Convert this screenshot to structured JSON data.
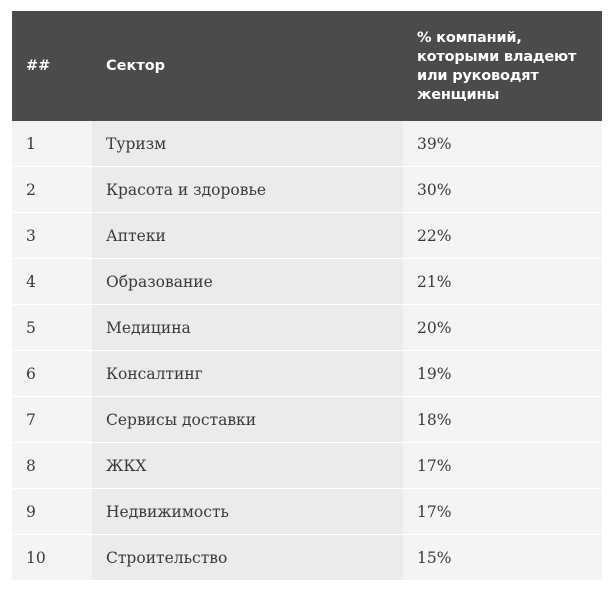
{
  "table": {
    "headers": {
      "num": "##",
      "sector": "Сектор",
      "pct_line1": "% компаний,",
      "pct_line2": "которыми владеют",
      "pct_line3": "или руководят",
      "pct_line4": "женщины"
    },
    "rows": [
      {
        "num": "1",
        "sector": "Туризм",
        "pct": "39%"
      },
      {
        "num": "2",
        "sector": "Красота и здоровье",
        "pct": "30%"
      },
      {
        "num": "3",
        "sector": "Аптеки",
        "pct": "22%"
      },
      {
        "num": "4",
        "sector": "Образование",
        "pct": "21%"
      },
      {
        "num": "5",
        "sector": "Медицина",
        "pct": "20%"
      },
      {
        "num": "6",
        "sector": "Консалтинг",
        "pct": "19%"
      },
      {
        "num": "7",
        "sector": "Сервисы доставки",
        "pct": "18%"
      },
      {
        "num": "8",
        "sector": "ЖКХ",
        "pct": "17%"
      },
      {
        "num": "9",
        "sector": "Недвижимость",
        "pct": "17%"
      },
      {
        "num": "10",
        "sector": "Строительство",
        "pct": "15%"
      }
    ]
  },
  "colors": {
    "header_bg": "#4b4b4b",
    "header_text": "#ffffff",
    "row_bg_light": "#f4f4f4",
    "row_bg_mid": "#ebebeb",
    "text": "#3a3a3a"
  }
}
